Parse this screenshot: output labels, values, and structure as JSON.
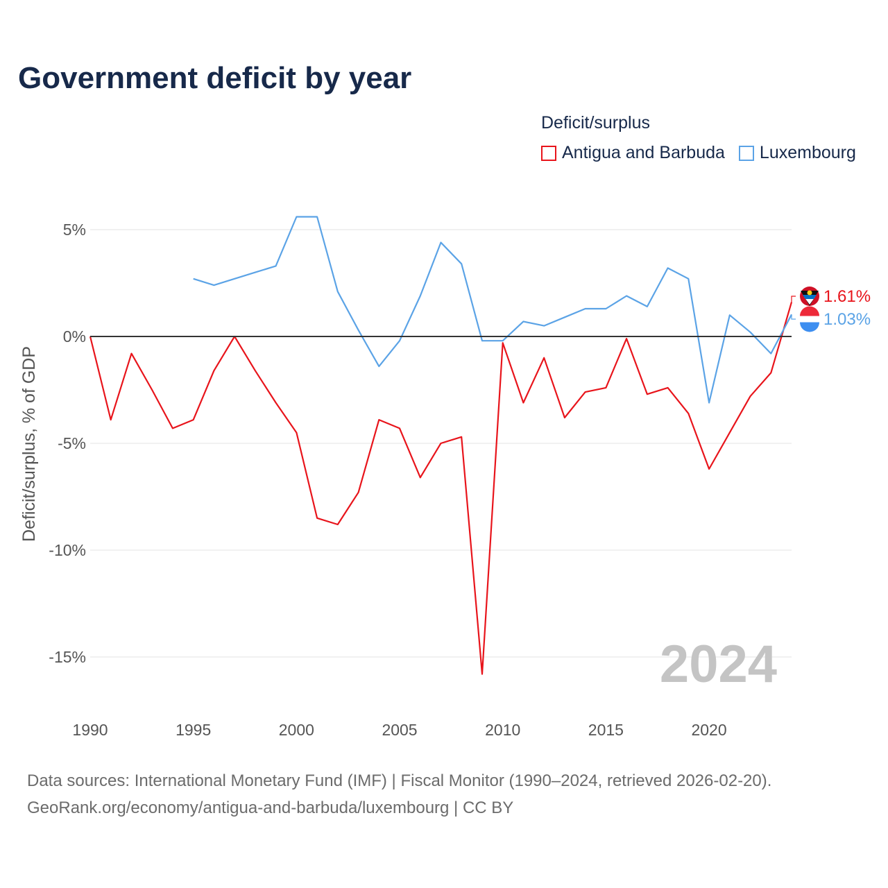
{
  "title": "Government deficit by year",
  "legend": {
    "title": "Deficit/surplus",
    "items": [
      {
        "label": "Antigua and Barbuda",
        "color": "#e8141b"
      },
      {
        "label": "Luxembourg",
        "color": "#5ba3e6"
      }
    ]
  },
  "footer": {
    "line1": "Data sources: International Monetary Fund (IMF) | Fiscal Monitor (1990–2024, retrieved 2026-02-20).",
    "line2": "GeoRank.org/economy/antigua-and-barbuda/luxembourg | CC BY"
  },
  "chart_data": {
    "type": "line",
    "title": "Government deficit by year",
    "xlabel": "",
    "ylabel": "Deficit/surplus, % of GDP",
    "xlim": [
      1990,
      2024
    ],
    "ylim": [
      -17,
      6.5
    ],
    "x_ticks": [
      1990,
      1995,
      2000,
      2005,
      2010,
      2015,
      2020
    ],
    "y_ticks": [
      5,
      0,
      -5,
      -10,
      -15
    ],
    "y_tick_labels": [
      "5%",
      "0%",
      "-5%",
      "-10%",
      "-15%"
    ],
    "year_watermark": "2024",
    "series": [
      {
        "name": "Antigua and Barbuda",
        "color": "#e8141b",
        "end_label": "1.61%",
        "x": [
          1990,
          1991,
          1992,
          1993,
          1994,
          1995,
          1996,
          1997,
          1998,
          1999,
          2000,
          2001,
          2002,
          2003,
          2004,
          2005,
          2006,
          2007,
          2008,
          2009,
          2010,
          2011,
          2012,
          2013,
          2014,
          2015,
          2016,
          2017,
          2018,
          2019,
          2020,
          2021,
          2022,
          2023,
          2024
        ],
        "values": [
          0.0,
          -3.9,
          -0.8,
          -2.5,
          -4.3,
          -3.9,
          -1.6,
          0.0,
          -1.6,
          -3.1,
          -4.5,
          -8.5,
          -8.8,
          -7.3,
          -3.9,
          -4.3,
          -6.6,
          -5.0,
          -4.7,
          -15.8,
          -0.3,
          -3.1,
          -1.0,
          -3.8,
          -2.6,
          -2.4,
          -0.1,
          -2.7,
          -2.4,
          -3.6,
          -6.2,
          -4.5,
          -2.8,
          -1.7,
          1.61
        ]
      },
      {
        "name": "Luxembourg",
        "color": "#5ba3e6",
        "end_label": "1.03%",
        "x": [
          1995,
          1996,
          1997,
          1998,
          1999,
          2000,
          2001,
          2002,
          2003,
          2004,
          2005,
          2006,
          2007,
          2008,
          2009,
          2010,
          2011,
          2012,
          2013,
          2014,
          2015,
          2016,
          2017,
          2018,
          2019,
          2020,
          2021,
          2022,
          2023,
          2024
        ],
        "values": [
          2.7,
          2.4,
          2.7,
          3.0,
          3.3,
          5.6,
          5.6,
          2.1,
          0.3,
          -1.4,
          -0.2,
          1.9,
          4.4,
          3.4,
          -0.2,
          -0.2,
          0.7,
          0.5,
          0.9,
          1.3,
          1.3,
          1.9,
          1.4,
          3.2,
          2.7,
          -3.1,
          1.0,
          0.2,
          -0.8,
          1.03
        ]
      }
    ]
  }
}
